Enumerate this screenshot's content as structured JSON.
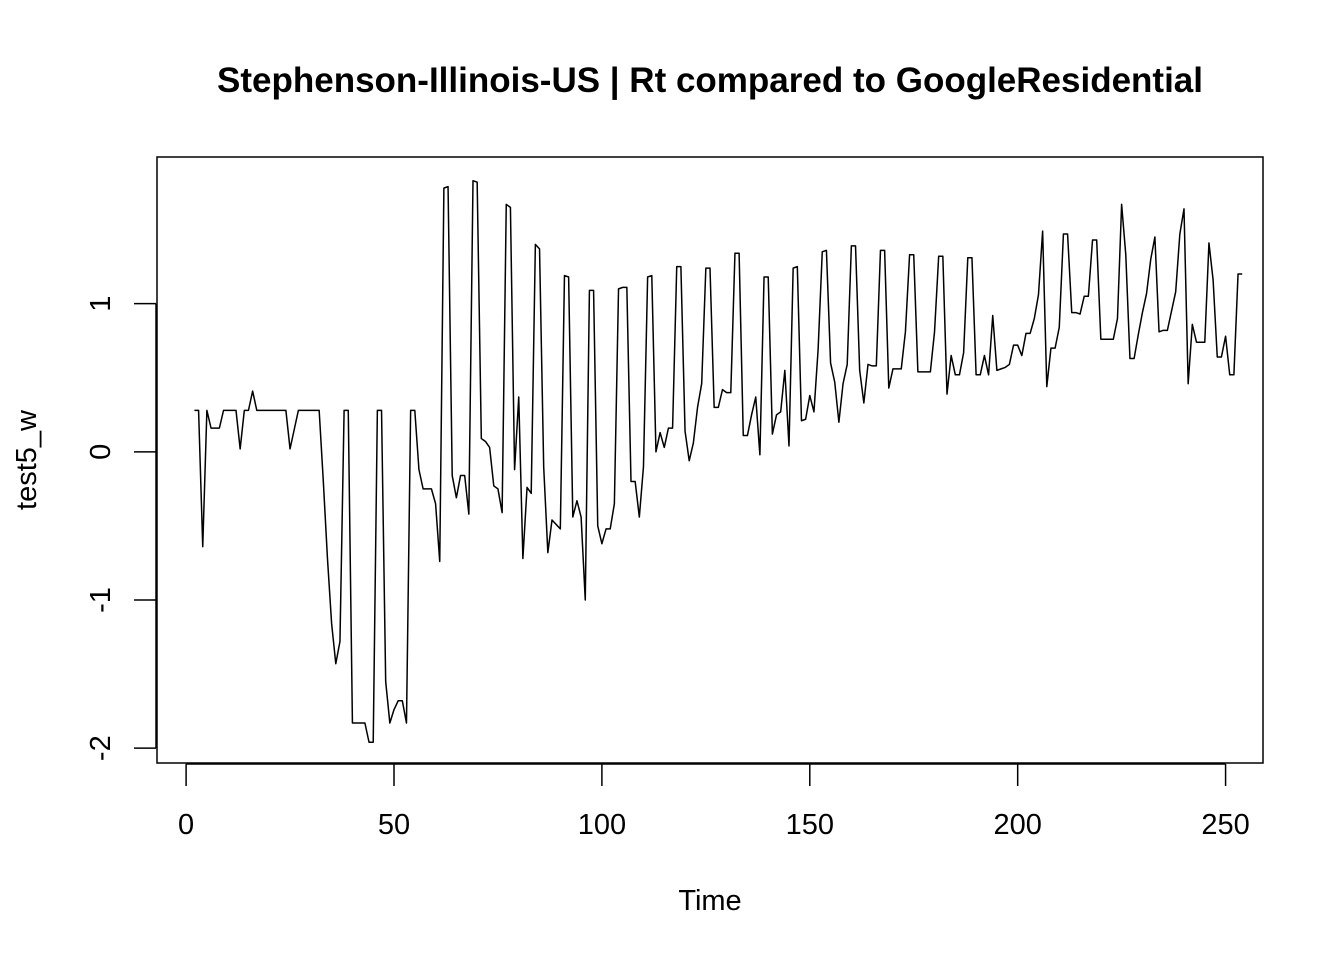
{
  "chart_data": {
    "type": "line",
    "title": "Stephenson-Illinois-US | Rt compared to GoogleResidential",
    "xlabel": "Time",
    "ylabel": "test5_w",
    "xlim": [
      -7,
      259
    ],
    "ylim": [
      -2.1,
      1.99
    ],
    "x_ticks": [
      0,
      50,
      100,
      150,
      200,
      250
    ],
    "x_tick_labels": [
      "0",
      "50",
      "100",
      "150",
      "200",
      "250"
    ],
    "y_ticks": [
      -2,
      -1,
      0,
      1
    ],
    "y_tick_labels": [
      "-2",
      "-1",
      "0",
      "1"
    ],
    "grid": false,
    "legend": "none",
    "line_color": "#000000",
    "series": [
      {
        "x_start": 2,
        "values": [
          0.28,
          0.28,
          -0.64,
          0.28,
          0.16,
          0.16,
          0.16,
          0.28,
          0.28,
          0.28,
          0.28,
          0.02,
          0.28,
          0.28,
          0.41,
          0.28,
          0.28,
          0.28,
          0.28,
          0.28,
          0.28,
          0.28,
          0.28,
          0.02,
          0.15,
          0.28,
          0.28,
          0.28,
          0.28,
          0.28,
          0.28,
          -0.2,
          -0.72,
          -1.16,
          -1.43,
          -1.28,
          0.28,
          0.28,
          -1.83,
          -1.83,
          -1.83,
          -1.83,
          -1.96,
          -1.96,
          0.28,
          0.28,
          -1.55,
          -1.83,
          -1.74,
          -1.68,
          -1.68,
          -1.83,
          0.28,
          0.28,
          -0.12,
          -0.25,
          -0.25,
          -0.25,
          -0.35,
          -0.74,
          1.78,
          1.79,
          -0.16,
          -0.31,
          -0.16,
          -0.16,
          -0.42,
          1.83,
          1.82,
          0.09,
          0.07,
          0.03,
          -0.23,
          -0.25,
          -0.41,
          1.67,
          1.65,
          -0.12,
          0.37,
          -0.72,
          -0.24,
          -0.28,
          1.4,
          1.37,
          -0.1,
          -0.68,
          -0.46,
          -0.49,
          -0.52,
          1.19,
          1.18,
          -0.44,
          -0.33,
          -0.44,
          -1.0,
          1.09,
          1.09,
          -0.5,
          -0.62,
          -0.52,
          -0.52,
          -0.35,
          1.1,
          1.11,
          1.11,
          -0.2,
          -0.2,
          -0.44,
          -0.1,
          1.18,
          1.19,
          0.0,
          0.13,
          0.03,
          0.16,
          0.16,
          1.25,
          1.25,
          0.14,
          -0.06,
          0.06,
          0.3,
          0.46,
          1.24,
          1.24,
          0.3,
          0.3,
          0.42,
          0.4,
          0.4,
          1.34,
          1.34,
          0.11,
          0.11,
          0.25,
          0.37,
          -0.02,
          1.18,
          1.18,
          0.12,
          0.25,
          0.27,
          0.55,
          0.04,
          1.24,
          1.25,
          0.21,
          0.22,
          0.38,
          0.27,
          0.69,
          1.35,
          1.36,
          0.6,
          0.47,
          0.2,
          0.46,
          0.59,
          1.39,
          1.39,
          0.55,
          0.33,
          0.59,
          0.58,
          0.58,
          1.36,
          1.36,
          0.43,
          0.56,
          0.56,
          0.56,
          0.81,
          1.33,
          1.33,
          0.54,
          0.54,
          0.54,
          0.54,
          0.81,
          1.32,
          1.32,
          0.39,
          0.65,
          0.52,
          0.52,
          0.67,
          1.31,
          1.31,
          0.52,
          0.52,
          0.65,
          0.52,
          0.92,
          0.55,
          0.56,
          0.57,
          0.59,
          0.72,
          0.72,
          0.65,
          0.8,
          0.8,
          0.9,
          1.06,
          1.49,
          0.44,
          0.7,
          0.7,
          0.84,
          1.47,
          1.47,
          0.94,
          0.94,
          0.93,
          1.05,
          1.05,
          1.43,
          1.43,
          0.76,
          0.76,
          0.76,
          0.76,
          0.9,
          1.67,
          1.33,
          0.63,
          0.63,
          0.79,
          0.94,
          1.07,
          1.3,
          1.45,
          0.81,
          0.82,
          0.82,
          0.95,
          1.08,
          1.47,
          1.64,
          0.46,
          0.86,
          0.74,
          0.74,
          0.74,
          1.41,
          1.16,
          0.64,
          0.64,
          0.78,
          0.52,
          0.52,
          1.2,
          1.2
        ]
      }
    ]
  }
}
